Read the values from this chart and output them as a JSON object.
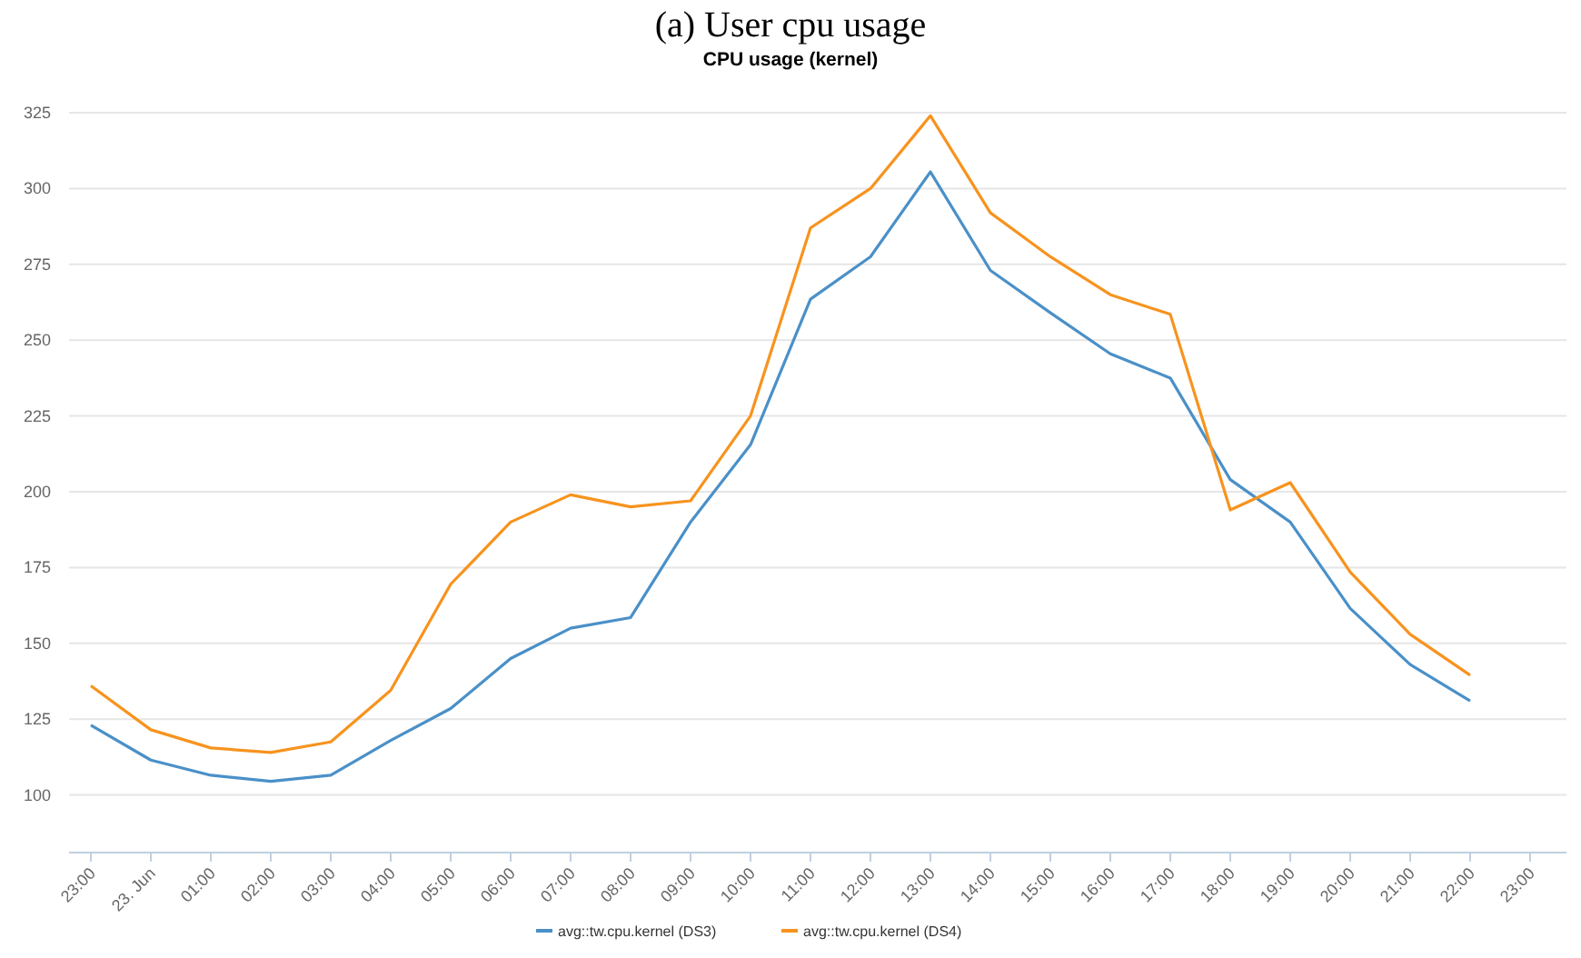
{
  "chart_data": {
    "type": "line",
    "title": "CPU usage (kernel)",
    "annotations": [
      "(a) User cpu usage"
    ],
    "categories": [
      "23:00",
      "23. Jun",
      "01:00",
      "02:00",
      "03:00",
      "04:00",
      "05:00",
      "06:00",
      "07:00",
      "08:00",
      "09:00",
      "10:00",
      "11:00",
      "12:00",
      "13:00",
      "14:00",
      "15:00",
      "16:00",
      "17:00",
      "18:00",
      "19:00",
      "20:00",
      "21:00",
      "22:00",
      "23:00"
    ],
    "series": [
      {
        "name": "avg::tw.cpu.kernel (DS3)",
        "color": "#4a90c8",
        "values": [
          123,
          111.5,
          106.5,
          104.5,
          106.5,
          118,
          128.5,
          145,
          155,
          158.5,
          190,
          215.5,
          263.5,
          277.5,
          305.5,
          273,
          259,
          245.5,
          237.5,
          204,
          190,
          161.5,
          143,
          131,
          null
        ]
      },
      {
        "name": "avg::tw.cpu.kernel (DS4)",
        "color": "#f7931e",
        "values": [
          136,
          121.5,
          115.5,
          114,
          117.5,
          134.5,
          169.5,
          190,
          199,
          195,
          197,
          225,
          287,
          300,
          324,
          292,
          277.5,
          265,
          258.5,
          194,
          203,
          173.5,
          153,
          139.5,
          null
        ]
      }
    ],
    "ylim": [
      81,
      325
    ],
    "yticks": [
      100,
      125,
      150,
      175,
      200,
      225,
      250,
      275,
      300,
      325
    ],
    "grid": "y",
    "legend": "bottom",
    "marker": "none",
    "line_style": "solid"
  }
}
